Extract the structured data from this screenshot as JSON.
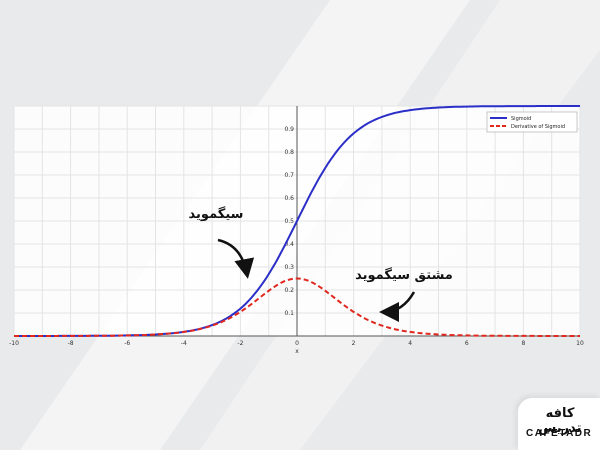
{
  "chart_data": {
    "type": "line",
    "xlabel": "x",
    "ylabel": "",
    "xlim": [
      -10,
      10
    ],
    "ylim": [
      0,
      1
    ],
    "x_ticks": [
      -10,
      -8,
      -6,
      -4,
      -2,
      0,
      2,
      4,
      6,
      8,
      10
    ],
    "y_ticks": [
      0.1,
      0.2,
      0.3,
      0.4,
      0.5,
      0.6,
      0.7,
      0.8,
      0.9
    ],
    "grid": true,
    "legend_position": "top-right",
    "series": [
      {
        "name": "Sigmoid",
        "color": "#2b2fc7",
        "style": "solid",
        "x": [
          -10,
          -8,
          -6,
          -5,
          -4,
          -3,
          -2,
          -1.5,
          -1,
          -0.5,
          0,
          0.5,
          1,
          1.5,
          2,
          3,
          4,
          5,
          6,
          8,
          10
        ],
        "values": [
          4.54e-05,
          0.000335,
          0.00247,
          0.00669,
          0.018,
          0.0474,
          0.119,
          0.182,
          0.269,
          0.378,
          0.5,
          0.622,
          0.731,
          0.818,
          0.881,
          0.953,
          0.982,
          0.993,
          0.998,
          0.9997,
          1.0
        ]
      },
      {
        "name": "Derivative of Sigmoid",
        "color": "#e0281f",
        "style": "dashed",
        "x": [
          -10,
          -8,
          -6,
          -5,
          -4,
          -3,
          -2,
          -1.5,
          -1,
          -0.5,
          0,
          0.5,
          1,
          1.5,
          2,
          3,
          4,
          5,
          6,
          8,
          10
        ],
        "values": [
          4.54e-05,
          0.000335,
          0.00247,
          0.00665,
          0.0177,
          0.0452,
          0.105,
          0.149,
          0.197,
          0.235,
          0.25,
          0.235,
          0.197,
          0.149,
          0.105,
          0.0452,
          0.0177,
          0.00665,
          0.00247,
          0.000335,
          4.54e-05
        ]
      }
    ],
    "annotations": [
      {
        "text": "سیگموید",
        "target_series": "Sigmoid"
      },
      {
        "text": "مشتق سیگموید",
        "target_series": "Derivative of Sigmoid"
      }
    ]
  },
  "watermark": {
    "logo_text": "کافه تدریس",
    "brand_text": "CAFETADR"
  },
  "colors": {
    "background": "#e9eaec",
    "plot_bg": "#ffffff",
    "grid": "#e4e4e4",
    "sigmoid": "#2b2fc7",
    "derivative": "#e0281f"
  }
}
